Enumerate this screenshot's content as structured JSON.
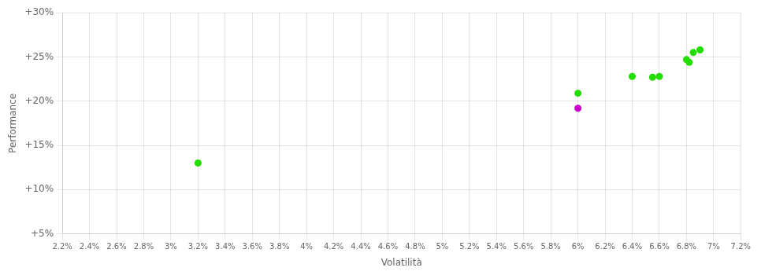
{
  "chart_data": {
    "type": "scatter",
    "xlabel": "Volatilità",
    "ylabel": "Performance",
    "xlim": [
      0.022,
      0.072
    ],
    "ylim": [
      0.05,
      0.3
    ],
    "xticks": [
      {
        "value": 0.022,
        "label": "2.2%"
      },
      {
        "value": 0.024,
        "label": "2.4%"
      },
      {
        "value": 0.026,
        "label": "2.6%"
      },
      {
        "value": 0.028,
        "label": "2.8%"
      },
      {
        "value": 0.03,
        "label": "3%"
      },
      {
        "value": 0.032,
        "label": "3.2%"
      },
      {
        "value": 0.034,
        "label": "3.4%"
      },
      {
        "value": 0.036,
        "label": "3.6%"
      },
      {
        "value": 0.038,
        "label": "3.8%"
      },
      {
        "value": 0.04,
        "label": "4%"
      },
      {
        "value": 0.042,
        "label": "4.2%"
      },
      {
        "value": 0.044,
        "label": "4.4%"
      },
      {
        "value": 0.046,
        "label": "4.6%"
      },
      {
        "value": 0.048,
        "label": "4.8%"
      },
      {
        "value": 0.05,
        "label": "5%"
      },
      {
        "value": 0.052,
        "label": "5.2%"
      },
      {
        "value": 0.054,
        "label": "5.4%"
      },
      {
        "value": 0.056,
        "label": "5.6%"
      },
      {
        "value": 0.058,
        "label": "5.8%"
      },
      {
        "value": 0.06,
        "label": "6%"
      },
      {
        "value": 0.062,
        "label": "6.2%"
      },
      {
        "value": 0.064,
        "label": "6.4%"
      },
      {
        "value": 0.066,
        "label": "6.6%"
      },
      {
        "value": 0.068,
        "label": "6.8%"
      },
      {
        "value": 0.07,
        "label": "7%"
      },
      {
        "value": 0.072,
        "label": "7.2%"
      }
    ],
    "yticks": [
      {
        "value": 0.05,
        "label": "+5%"
      },
      {
        "value": 0.1,
        "label": "+10%"
      },
      {
        "value": 0.15,
        "label": "+15%"
      },
      {
        "value": 0.2,
        "label": "+20%"
      },
      {
        "value": 0.25,
        "label": "+25%"
      },
      {
        "value": 0.3,
        "label": "+30%"
      }
    ],
    "grid": true,
    "series": [
      {
        "color": "#22dd00",
        "x": [
          0.032,
          0.06,
          0.064,
          0.0655,
          0.066,
          0.068,
          0.0682,
          0.0685,
          0.069
        ],
        "values": [
          0.13,
          0.209,
          0.228,
          0.227,
          0.228,
          0.247,
          0.244,
          0.255,
          0.258
        ]
      },
      {
        "color": "#cc00cc",
        "x": [
          0.06
        ],
        "values": [
          0.192
        ]
      }
    ]
  }
}
